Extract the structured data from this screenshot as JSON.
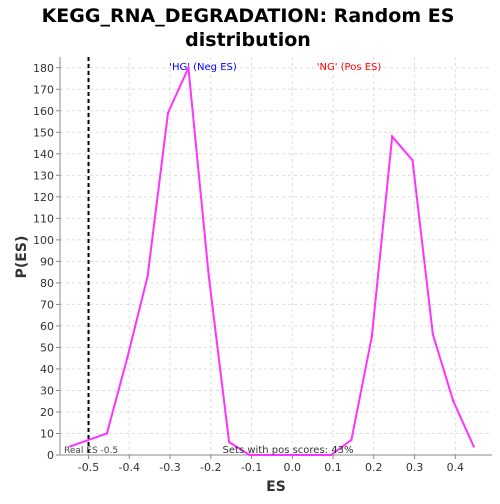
{
  "chart_data": {
    "type": "line",
    "title_line1": "KEGG_RNA_DEGRADATION: Random ES",
    "title_line2": "distribution",
    "xlabel": "ES",
    "ylabel": "P(ES)",
    "xlim": [
      -0.57,
      0.49
    ],
    "ylim": [
      0,
      185
    ],
    "xticks": [
      -0.5,
      -0.4,
      -0.3,
      -0.2,
      -0.1,
      0.0,
      0.1,
      0.2,
      0.3,
      0.4
    ],
    "xtick_labels": [
      "-0.5",
      "-0.4",
      "-0.3",
      "-0.2",
      "-0.1",
      "0.0",
      "0.1",
      "0.2",
      "0.3",
      "0.4"
    ],
    "yticks": [
      0,
      10,
      20,
      30,
      40,
      50,
      60,
      70,
      80,
      90,
      100,
      110,
      120,
      130,
      140,
      150,
      160,
      170,
      180
    ],
    "grid": true,
    "series": [
      {
        "color": "#ff33ff",
        "x": [
          -0.545,
          -0.455,
          -0.405,
          -0.355,
          -0.305,
          -0.255,
          -0.205,
          -0.155,
          -0.105,
          -0.055,
          -0.005,
          0.045,
          0.095,
          0.145,
          0.195,
          0.245,
          0.295,
          0.345,
          0.395,
          0.445
        ],
        "y": [
          4,
          10,
          45,
          83,
          159,
          180,
          83,
          6,
          0,
          0,
          0,
          0,
          0,
          7,
          55,
          148,
          137,
          56,
          25,
          4
        ]
      }
    ],
    "real_es": -0.5,
    "annotations": {
      "neg_label": "'HG' (Neg ES)",
      "neg_color": "#0000ff",
      "pos_label": "'NG' (Pos ES)",
      "pos_color": "#ff0000",
      "real_es_label": "Real ES -0.5",
      "pos_scores_label": "Sets with pos scores: 43%"
    }
  }
}
